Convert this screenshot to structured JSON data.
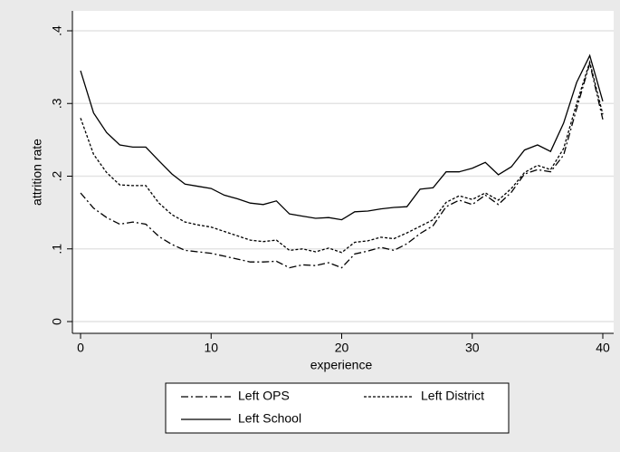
{
  "chart_data": {
    "type": "line",
    "x_label": "experience",
    "y_label": "attrition rate",
    "x": [
      0,
      1,
      2,
      3,
      4,
      5,
      6,
      7,
      8,
      9,
      10,
      11,
      12,
      13,
      14,
      15,
      16,
      17,
      18,
      19,
      20,
      21,
      22,
      23,
      24,
      25,
      26,
      27,
      28,
      29,
      30,
      31,
      32,
      33,
      34,
      35,
      36,
      37,
      38,
      39,
      40
    ],
    "series": [
      {
        "name": "Left OPS",
        "color": "#000000",
        "dash": "8,3,2,3",
        "values": [
          0.177,
          0.156,
          0.143,
          0.134,
          0.137,
          0.134,
          0.117,
          0.106,
          0.098,
          0.096,
          0.094,
          0.09,
          0.086,
          0.082,
          0.082,
          0.083,
          0.074,
          0.078,
          0.077,
          0.081,
          0.074,
          0.093,
          0.097,
          0.102,
          0.098,
          0.107,
          0.121,
          0.132,
          0.158,
          0.167,
          0.161,
          0.174,
          0.161,
          0.178,
          0.203,
          0.209,
          0.206,
          0.229,
          0.293,
          0.355,
          0.278
        ]
      },
      {
        "name": "Left District",
        "color": "#000000",
        "dash": "3,2",
        "values": [
          0.28,
          0.23,
          0.205,
          0.188,
          0.187,
          0.187,
          0.163,
          0.147,
          0.137,
          0.133,
          0.13,
          0.124,
          0.118,
          0.112,
          0.11,
          0.112,
          0.098,
          0.1,
          0.096,
          0.101,
          0.095,
          0.109,
          0.111,
          0.116,
          0.114,
          0.122,
          0.131,
          0.14,
          0.164,
          0.173,
          0.168,
          0.177,
          0.167,
          0.183,
          0.205,
          0.215,
          0.209,
          0.238,
          0.3,
          0.357,
          0.285
        ]
      },
      {
        "name": "Left School",
        "color": "#000000",
        "dash": "none",
        "values": [
          0.345,
          0.287,
          0.26,
          0.243,
          0.24,
          0.24,
          0.221,
          0.203,
          0.189,
          0.186,
          0.183,
          0.174,
          0.169,
          0.163,
          0.161,
          0.166,
          0.148,
          0.145,
          0.142,
          0.143,
          0.14,
          0.151,
          0.152,
          0.155,
          0.157,
          0.158,
          0.182,
          0.184,
          0.206,
          0.206,
          0.211,
          0.219,
          0.202,
          0.213,
          0.236,
          0.243,
          0.234,
          0.273,
          0.329,
          0.366,
          0.303
        ]
      }
    ],
    "xlim": [
      0,
      40
    ],
    "xticks": [
      0,
      10,
      20,
      30,
      40
    ],
    "ylim": [
      0,
      0.4
    ],
    "yticks": [
      0,
      {
        "value": 0.1,
        "label": ".1"
      },
      {
        "value": 0.2,
        "label": ".2"
      },
      {
        "value": 0.3,
        "label": ".3"
      },
      {
        "value": 0.4,
        "label": ".4"
      }
    ],
    "grid": true
  }
}
